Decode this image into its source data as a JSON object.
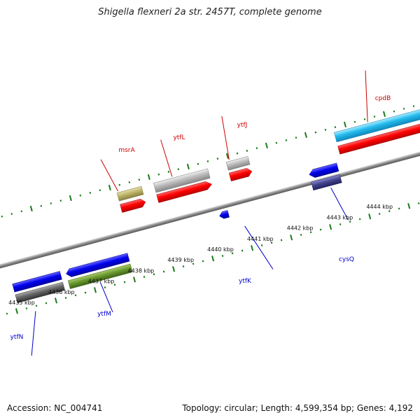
{
  "title": "Shigella flexneri 2a str. 2457T, complete genome",
  "footer": {
    "accession": "Accession: NC_004741",
    "summary": "Topology: circular; Length: 4,599,354 bp; Genes: 4,192"
  },
  "colors": {
    "forward_label": "#cc0000",
    "reverse_label": "#0000cc",
    "tick": "#1a7a1a",
    "backbone": "#888888"
  },
  "scale": {
    "unit": "kbp",
    "ticks": [
      "4435 kbp",
      "4436 kbp",
      "4437 kbp",
      "4438 kbp",
      "4439 kbp",
      "4440 kbp",
      "4441 kbp",
      "4442 kbp",
      "4443 kbp",
      "4444 kbp"
    ]
  },
  "genes": [
    {
      "name": "msrA",
      "strand": "+"
    },
    {
      "name": "ytfL",
      "strand": "+"
    },
    {
      "name": "ytfJ",
      "strand": "+"
    },
    {
      "name": "cpdB",
      "strand": "+"
    },
    {
      "name": "ytfN",
      "strand": "-"
    },
    {
      "name": "ytfM",
      "strand": "-"
    },
    {
      "name": "ytfK",
      "strand": "-"
    },
    {
      "name": "cysQ",
      "strand": "-"
    }
  ]
}
